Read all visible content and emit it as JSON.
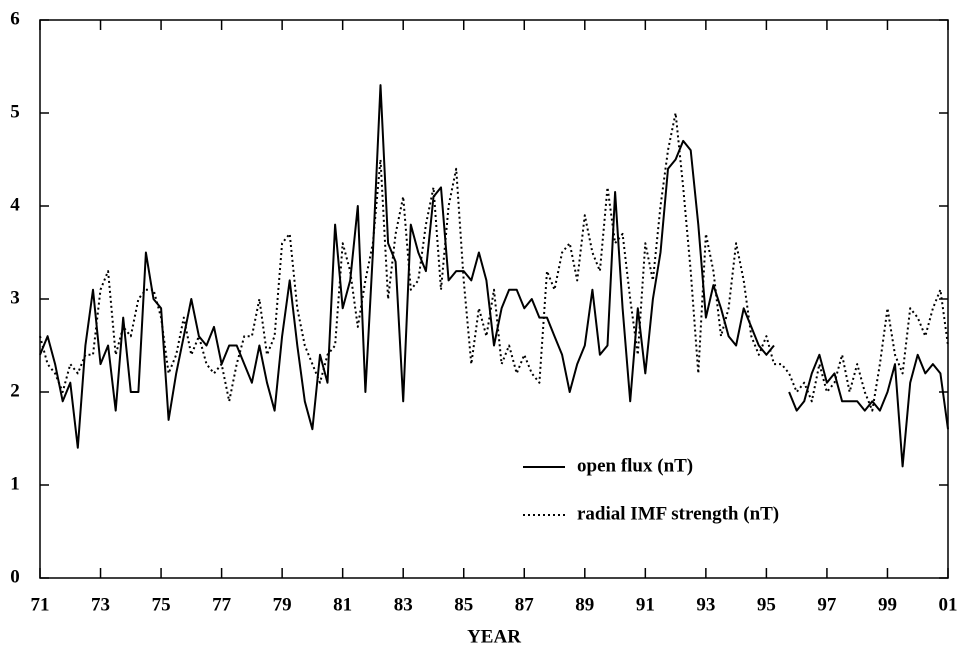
{
  "chart_data": {
    "type": "line",
    "xlabel": "YEAR",
    "x": [
      1971,
      1971.25,
      1971.5,
      1971.75,
      1972,
      1972.25,
      1972.5,
      1972.75,
      1973,
      1973.25,
      1973.5,
      1973.75,
      1974,
      1974.25,
      1974.5,
      1974.75,
      1975,
      1975.25,
      1975.5,
      1975.75,
      1976,
      1976.25,
      1976.5,
      1976.75,
      1977,
      1977.25,
      1977.5,
      1977.75,
      1978,
      1978.25,
      1978.5,
      1978.75,
      1979,
      1979.25,
      1979.5,
      1979.75,
      1980,
      1980.25,
      1980.5,
      1980.75,
      1981,
      1981.25,
      1981.5,
      1981.75,
      1982,
      1982.25,
      1982.5,
      1982.75,
      1983,
      1983.25,
      1983.5,
      1983.75,
      1984,
      1984.25,
      1984.5,
      1984.75,
      1985,
      1985.25,
      1985.5,
      1985.75,
      1986,
      1986.25,
      1986.5,
      1986.75,
      1987,
      1987.25,
      1987.5,
      1987.75,
      1988,
      1988.25,
      1988.5,
      1988.75,
      1989,
      1989.25,
      1989.5,
      1989.75,
      1990,
      1990.25,
      1990.5,
      1990.75,
      1991,
      1991.25,
      1991.5,
      1991.75,
      1992,
      1992.25,
      1992.5,
      1992.75,
      1993,
      1993.25,
      1993.5,
      1993.75,
      1994,
      1994.25,
      1994.5,
      1994.75,
      1995,
      1995.25,
      1995.5,
      1995.75,
      1996,
      1996.25,
      1996.5,
      1996.75,
      1997,
      1997.25,
      1997.5,
      1997.75,
      1998,
      1998.25,
      1998.5,
      1998.75,
      1999,
      1999.25,
      1999.5,
      1999.75,
      2000,
      2000.25,
      2000.5,
      2000.75,
      2001
    ],
    "series": [
      {
        "name": "open flux (nT)",
        "color": "#000000",
        "style": "solid",
        "values": [
          2.4,
          2.6,
          2.3,
          1.9,
          2.1,
          1.4,
          2.5,
          3.1,
          2.3,
          2.5,
          1.8,
          2.8,
          2.0,
          2.0,
          3.5,
          3.0,
          2.9,
          1.7,
          2.2,
          2.6,
          3.0,
          2.6,
          2.5,
          2.7,
          2.3,
          2.5,
          2.5,
          2.3,
          2.1,
          2.5,
          2.1,
          1.8,
          2.6,
          3.2,
          2.5,
          1.9,
          1.6,
          2.4,
          2.1,
          3.8,
          2.9,
          3.2,
          4.0,
          2.0,
          3.5,
          5.3,
          3.6,
          3.4,
          1.9,
          3.8,
          3.5,
          3.3,
          4.1,
          4.2,
          3.2,
          3.3,
          3.3,
          3.2,
          3.5,
          3.2,
          2.5,
          2.9,
          3.1,
          3.1,
          2.9,
          3.0,
          2.8,
          2.8,
          2.6,
          2.4,
          2.0,
          2.3,
          2.5,
          3.1,
          2.4,
          2.5,
          4.15,
          2.9,
          1.9,
          2.9,
          2.2,
          3.0,
          3.5,
          4.4,
          4.5,
          4.7,
          4.6,
          3.8,
          2.8,
          3.15,
          2.9,
          2.6,
          2.5,
          2.9,
          2.7,
          2.5,
          2.4,
          2.5,
          null,
          2.0,
          1.8,
          1.9,
          2.2,
          2.4,
          2.1,
          2.2,
          1.9,
          1.9,
          1.9,
          1.8,
          1.9,
          1.8,
          2.0,
          2.3,
          1.2,
          2.1,
          2.4,
          2.2,
          2.3,
          2.2,
          1.6
        ]
      },
      {
        "name": "radial IMF strength (nT)",
        "color": "#000000",
        "style": "dotted",
        "values": [
          2.6,
          2.3,
          2.2,
          2.0,
          2.3,
          2.2,
          2.4,
          2.4,
          3.1,
          3.3,
          2.4,
          2.7,
          2.6,
          3.0,
          3.1,
          3.1,
          2.8,
          2.2,
          2.4,
          2.8,
          2.4,
          2.6,
          2.3,
          2.2,
          2.3,
          1.9,
          2.3,
          2.6,
          2.6,
          3.0,
          2.4,
          2.6,
          3.6,
          3.7,
          2.9,
          2.5,
          2.3,
          2.1,
          2.4,
          2.5,
          3.6,
          3.3,
          2.7,
          3.2,
          3.6,
          4.5,
          3.0,
          3.7,
          4.1,
          3.1,
          3.2,
          3.8,
          4.2,
          3.1,
          4.0,
          4.4,
          3.2,
          2.3,
          2.9,
          2.6,
          3.1,
          2.3,
          2.5,
          2.2,
          2.4,
          2.2,
          2.1,
          3.3,
          3.1,
          3.5,
          3.6,
          3.2,
          3.9,
          3.5,
          3.3,
          4.2,
          3.6,
          3.7,
          3.0,
          2.4,
          3.6,
          3.2,
          4.0,
          4.6,
          5.0,
          4.2,
          3.3,
          2.2,
          3.7,
          3.3,
          2.6,
          2.9,
          3.6,
          3.2,
          2.6,
          2.4,
          2.6,
          2.3,
          2.3,
          2.2,
          2.0,
          2.1,
          1.9,
          2.3,
          2.0,
          2.1,
          2.4,
          2.0,
          2.3,
          2.0,
          1.8,
          2.3,
          2.9,
          2.4,
          2.2,
          2.9,
          2.8,
          2.6,
          2.9,
          3.1,
          2.5
        ]
      }
    ],
    "xlim": [
      1971,
      2001
    ],
    "xticks": [
      {
        "value": 1971,
        "label": "71"
      },
      {
        "value": 1973,
        "label": "73"
      },
      {
        "value": 1975,
        "label": "75"
      },
      {
        "value": 1977,
        "label": "77"
      },
      {
        "value": 1979,
        "label": "79"
      },
      {
        "value": 1981,
        "label": "81"
      },
      {
        "value": 1983,
        "label": "83"
      },
      {
        "value": 1985,
        "label": "85"
      },
      {
        "value": 1987,
        "label": "87"
      },
      {
        "value": 1989,
        "label": "89"
      },
      {
        "value": 1991,
        "label": "91"
      },
      {
        "value": 1993,
        "label": "93"
      },
      {
        "value": 1995,
        "label": "95"
      },
      {
        "value": 1997,
        "label": "97"
      },
      {
        "value": 1999,
        "label": "99"
      },
      {
        "value": 2001,
        "label": "01"
      }
    ],
    "ylim": [
      0,
      6
    ],
    "yticks": [
      0,
      1,
      2,
      3,
      4,
      5,
      6
    ],
    "grid": false,
    "legend": "lower right"
  }
}
